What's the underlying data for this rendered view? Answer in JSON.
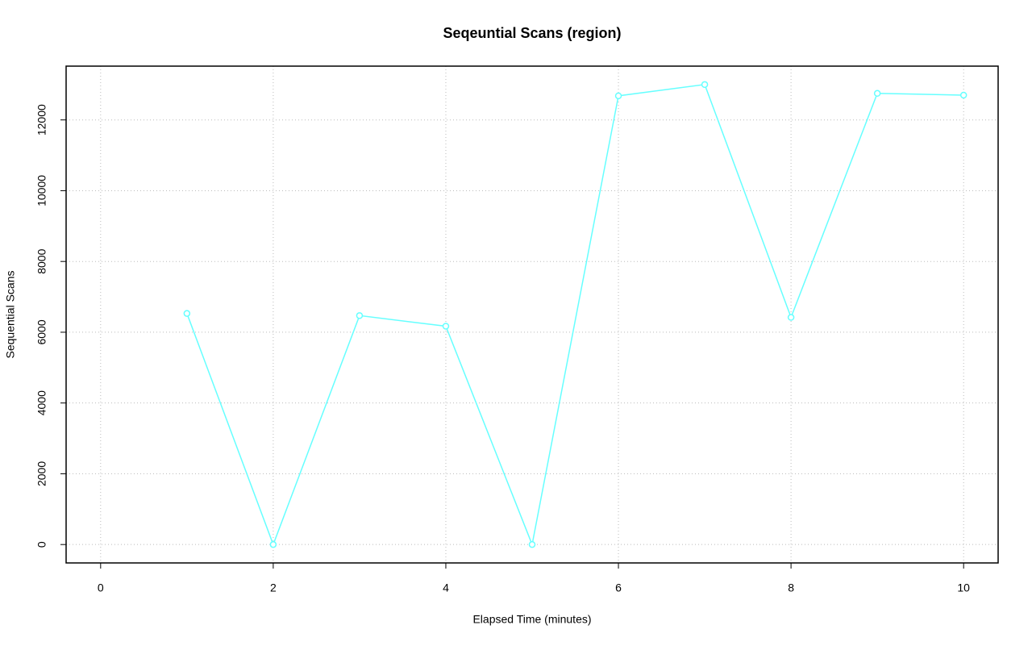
{
  "chart_data": {
    "type": "line",
    "title": "Seqeuntial Scans (region)",
    "x_label": "Elapsed Time (minutes)",
    "y_label": "Sequential Scans",
    "x": [
      1,
      2,
      3,
      4,
      5,
      6,
      7,
      8,
      9,
      10
    ],
    "series": [
      {
        "name": "region",
        "color": "#66ffff",
        "values": [
          6530,
          0,
          6470,
          6170,
          0,
          12680,
          13000,
          6420,
          12750,
          12700
        ]
      }
    ],
    "xlim": [
      -0.4,
      10.4
    ],
    "xticks": [
      0,
      2,
      4,
      6,
      8,
      10
    ],
    "ylim": [
      -520,
      13520
    ],
    "yticks": [
      0,
      2000,
      4000,
      6000,
      8000,
      10000,
      12000
    ],
    "grid": true,
    "legend": false
  }
}
